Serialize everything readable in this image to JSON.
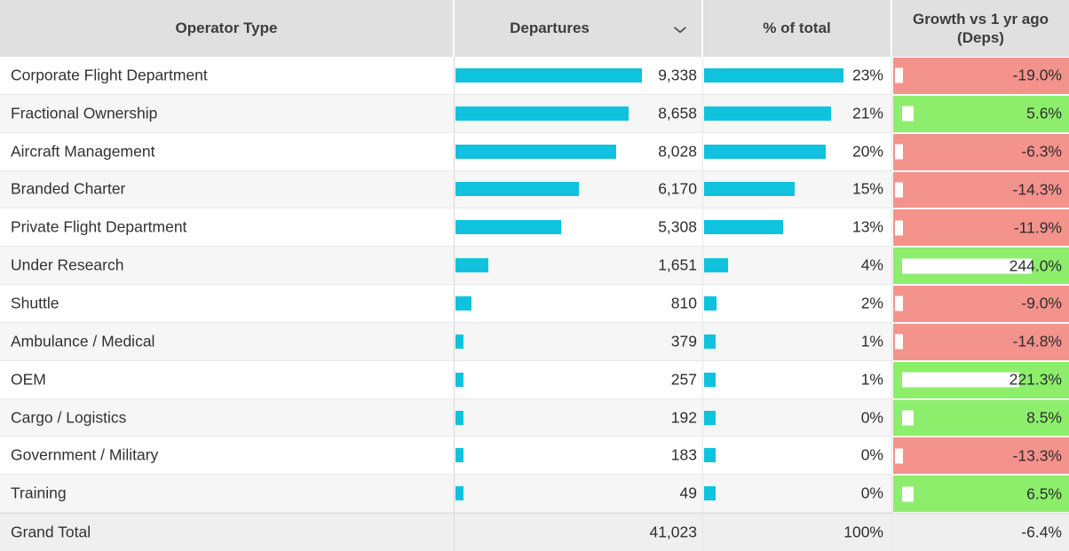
{
  "header": {
    "operator_type": "Operator Type",
    "departures": "Departures",
    "pct_of_total": "% of total",
    "growth": "Growth vs 1 yr ago (Deps)",
    "sort_icon": "chevron-down-icon"
  },
  "colors": {
    "data_bar_cyan": "#0fc3de",
    "growth_negative_bg": "#f4928c",
    "growth_positive_bg": "#8cee6b",
    "header_bg": "#e0e0e0",
    "alt_row_bg": "#f6f6f6",
    "grand_total_row_bg": "#efefef"
  },
  "rows": [
    {
      "label": "Corporate Flight Department",
      "departures": 9338,
      "departures_text": "9,338",
      "pct": 23,
      "pct_text": "23%",
      "growth": -19.0,
      "growth_text": "-19.0%"
    },
    {
      "label": "Fractional Ownership",
      "departures": 8658,
      "departures_text": "8,658",
      "pct": 21,
      "pct_text": "21%",
      "growth": 5.6,
      "growth_text": "5.6%"
    },
    {
      "label": "Aircraft Management",
      "departures": 8028,
      "departures_text": "8,028",
      "pct": 20,
      "pct_text": "20%",
      "growth": -6.3,
      "growth_text": "-6.3%"
    },
    {
      "label": "Branded Charter",
      "departures": 6170,
      "departures_text": "6,170",
      "pct": 15,
      "pct_text": "15%",
      "growth": -14.3,
      "growth_text": "-14.3%"
    },
    {
      "label": "Private Flight Department",
      "departures": 5308,
      "departures_text": "5,308",
      "pct": 13,
      "pct_text": "13%",
      "growth": -11.9,
      "growth_text": "-11.9%"
    },
    {
      "label": "Under Research",
      "departures": 1651,
      "departures_text": "1,651",
      "pct": 4,
      "pct_text": "4%",
      "growth": 244.0,
      "growth_text": "244.0%"
    },
    {
      "label": "Shuttle",
      "departures": 810,
      "departures_text": "810",
      "pct": 2,
      "pct_text": "2%",
      "growth": -9.0,
      "growth_text": "-9.0%"
    },
    {
      "label": "Ambulance / Medical",
      "departures": 379,
      "departures_text": "379",
      "pct": 1,
      "pct_text": "1%",
      "growth": -14.8,
      "growth_text": "-14.8%"
    },
    {
      "label": "OEM",
      "departures": 257,
      "departures_text": "257",
      "pct": 1,
      "pct_text": "1%",
      "growth": 221.3,
      "growth_text": "221.3%"
    },
    {
      "label": "Cargo / Logistics",
      "departures": 192,
      "departures_text": "192",
      "pct": 0,
      "pct_text": "0%",
      "growth": 8.5,
      "growth_text": "8.5%"
    },
    {
      "label": "Government / Military",
      "departures": 183,
      "departures_text": "183",
      "pct": 0,
      "pct_text": "0%",
      "growth": -13.3,
      "growth_text": "-13.3%"
    },
    {
      "label": "Training",
      "departures": 49,
      "departures_text": "49",
      "pct": 0,
      "pct_text": "0%",
      "growth": 6.5,
      "growth_text": "6.5%"
    }
  ],
  "grand_total": {
    "label": "Grand Total",
    "departures": 41023,
    "departures_text": "41,023",
    "pct": 100,
    "pct_text": "100%",
    "growth": -6.4,
    "growth_text": "-6.4%"
  },
  "chart_data": {
    "type": "table",
    "title": "",
    "columns": [
      "Operator Type",
      "Departures",
      "% of total",
      "Growth vs 1 yr ago (Deps)"
    ],
    "sorted_by": "Departures descending",
    "bar_scale": {
      "departures_max": 9338,
      "pct_max": 23,
      "growth_min": -19.0,
      "growth_max": 244.0
    },
    "rows": [
      [
        "Corporate Flight Department",
        9338,
        23,
        -19.0
      ],
      [
        "Fractional Ownership",
        8658,
        21,
        5.6
      ],
      [
        "Aircraft Management",
        8028,
        20,
        -6.3
      ],
      [
        "Branded Charter",
        6170,
        15,
        -14.3
      ],
      [
        "Private Flight Department",
        5308,
        13,
        -11.9
      ],
      [
        "Under Research",
        1651,
        4,
        244.0
      ],
      [
        "Shuttle",
        810,
        2,
        -9.0
      ],
      [
        "Ambulance / Medical",
        379,
        1,
        -14.8
      ],
      [
        "OEM",
        257,
        1,
        221.3
      ],
      [
        "Cargo / Logistics",
        192,
        0,
        8.5
      ],
      [
        "Government / Military",
        183,
        0,
        -13.3
      ],
      [
        "Training",
        49,
        0,
        6.5
      ]
    ],
    "grand_total_row": [
      "Grand Total",
      41023,
      100,
      -6.4
    ]
  }
}
